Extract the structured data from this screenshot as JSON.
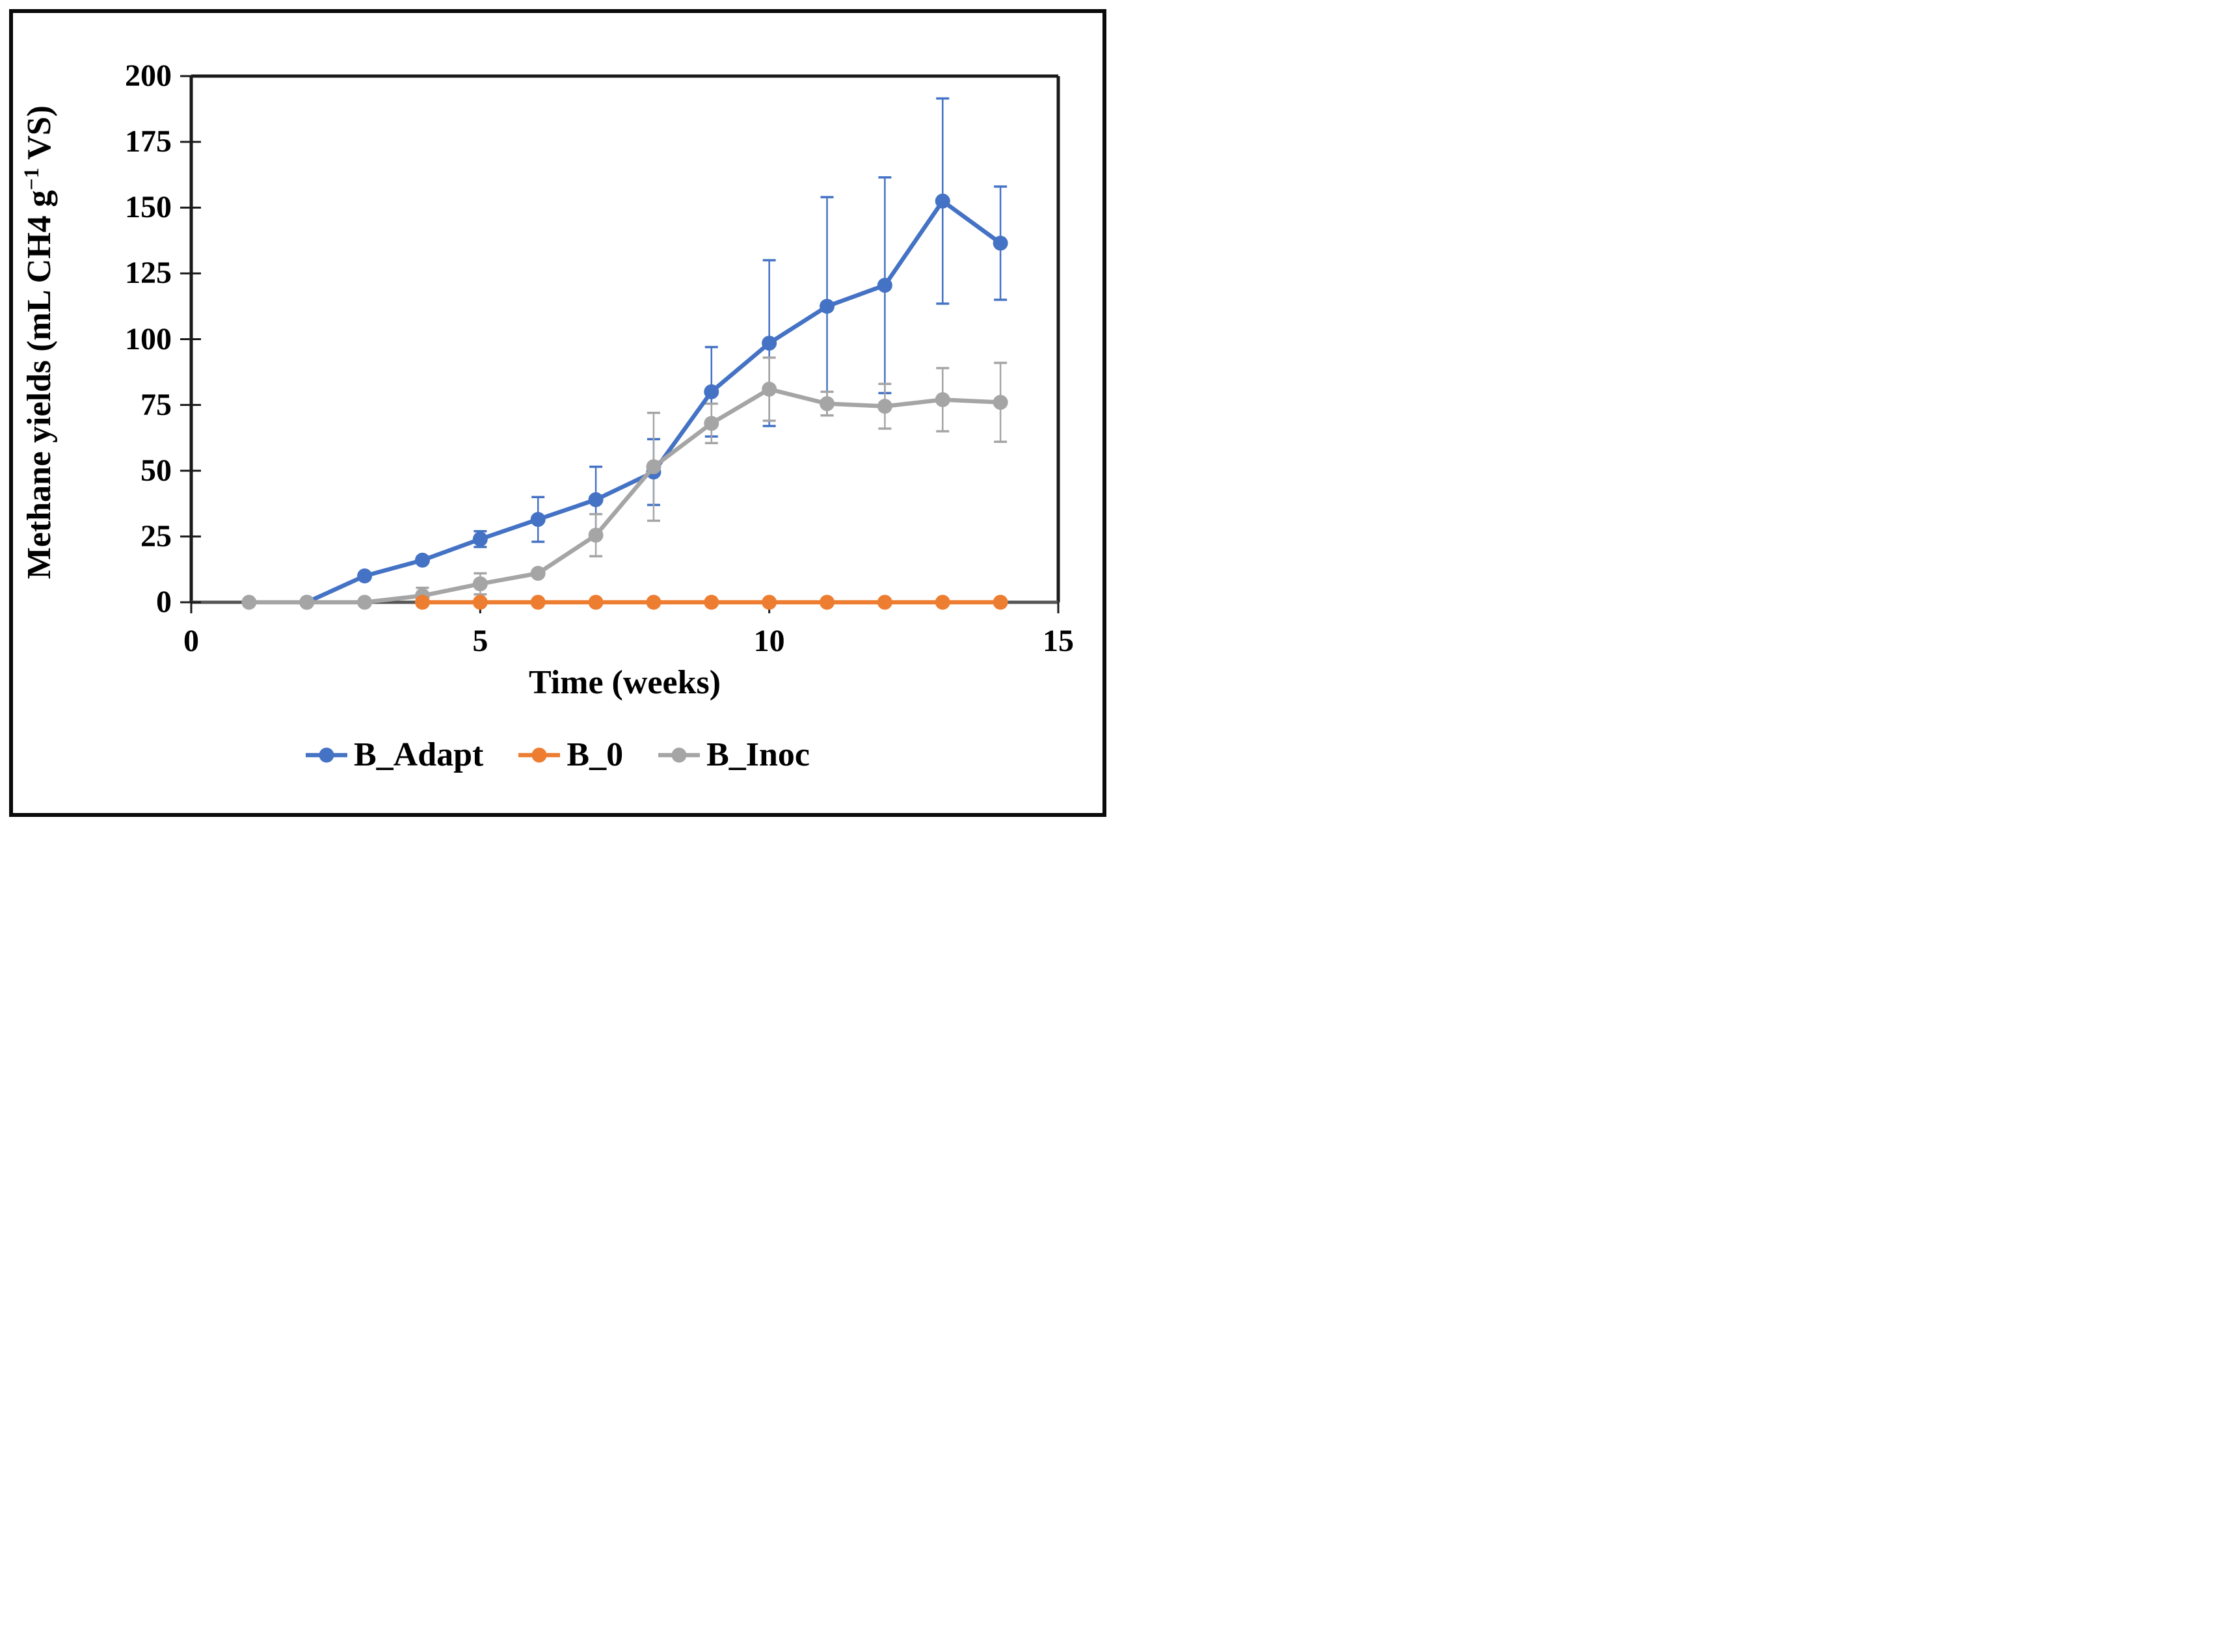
{
  "figure": {
    "background": "#ffffff",
    "border_color": "#0a0a0a"
  },
  "labels": {
    "x_title": "Time (weeks)",
    "y_title_pre": "Methane yields (mL CH4 g",
    "y_title_sup": "−1",
    "y_title_post": " VS)"
  },
  "chart_data": {
    "type": "line",
    "title": "",
    "xlabel": "Time (weeks)",
    "ylabel": "Methane yields (mL CH4 g-1 VS)",
    "xlim": [
      0,
      15
    ],
    "ylim": [
      0,
      200
    ],
    "xticks": [
      0,
      5,
      10,
      15
    ],
    "yticks": [
      0,
      25,
      50,
      75,
      100,
      125,
      150,
      175,
      200
    ],
    "grid": false,
    "legend_position": "bottom",
    "axis_color": "#1a1a1a",
    "baseline_color": "#555555",
    "series": [
      {
        "name": "B_Adapt",
        "color": "#4472C4",
        "x": [
          2,
          3,
          4,
          5,
          6,
          7,
          8,
          9,
          10,
          11,
          12,
          13,
          14
        ],
        "y": [
          0,
          10,
          16,
          24,
          31.5,
          39,
          49.5,
          80,
          98.5,
          112.5,
          120.5,
          152.5,
          136.5
        ],
        "err": [
          0,
          0,
          0,
          3,
          8.5,
          12.5,
          12.5,
          17,
          31.5,
          41.5,
          41,
          39,
          21.5
        ]
      },
      {
        "name": "B_Inoc",
        "color": "#A5A5A5",
        "x": [
          1,
          2,
          3,
          4,
          5,
          6,
          7,
          8,
          9,
          10,
          11,
          12,
          13,
          14
        ],
        "y": [
          0,
          0,
          0,
          2.5,
          7,
          11,
          25.5,
          51.5,
          68,
          81,
          75.5,
          74.5,
          77,
          76
        ],
        "err": [
          0,
          0,
          0,
          3,
          4,
          0,
          8,
          20.5,
          7.5,
          12,
          4.5,
          8.5,
          12,
          15
        ]
      },
      {
        "name": "B_0",
        "color": "#ED7D31",
        "x": [
          4,
          5,
          6,
          7,
          8,
          9,
          10,
          11,
          12,
          13,
          14
        ],
        "y": [
          0,
          0,
          0,
          0,
          0,
          0,
          0,
          0,
          0,
          0,
          0
        ],
        "err": [
          0,
          0,
          0,
          0,
          0,
          0,
          0,
          0,
          0,
          0,
          0
        ]
      }
    ],
    "legend": [
      {
        "label": "B_Adapt",
        "color": "#4472C4"
      },
      {
        "label": "B_0",
        "color": "#ED7D31"
      },
      {
        "label": "B_Inoc",
        "color": "#A5A5A5"
      }
    ]
  }
}
